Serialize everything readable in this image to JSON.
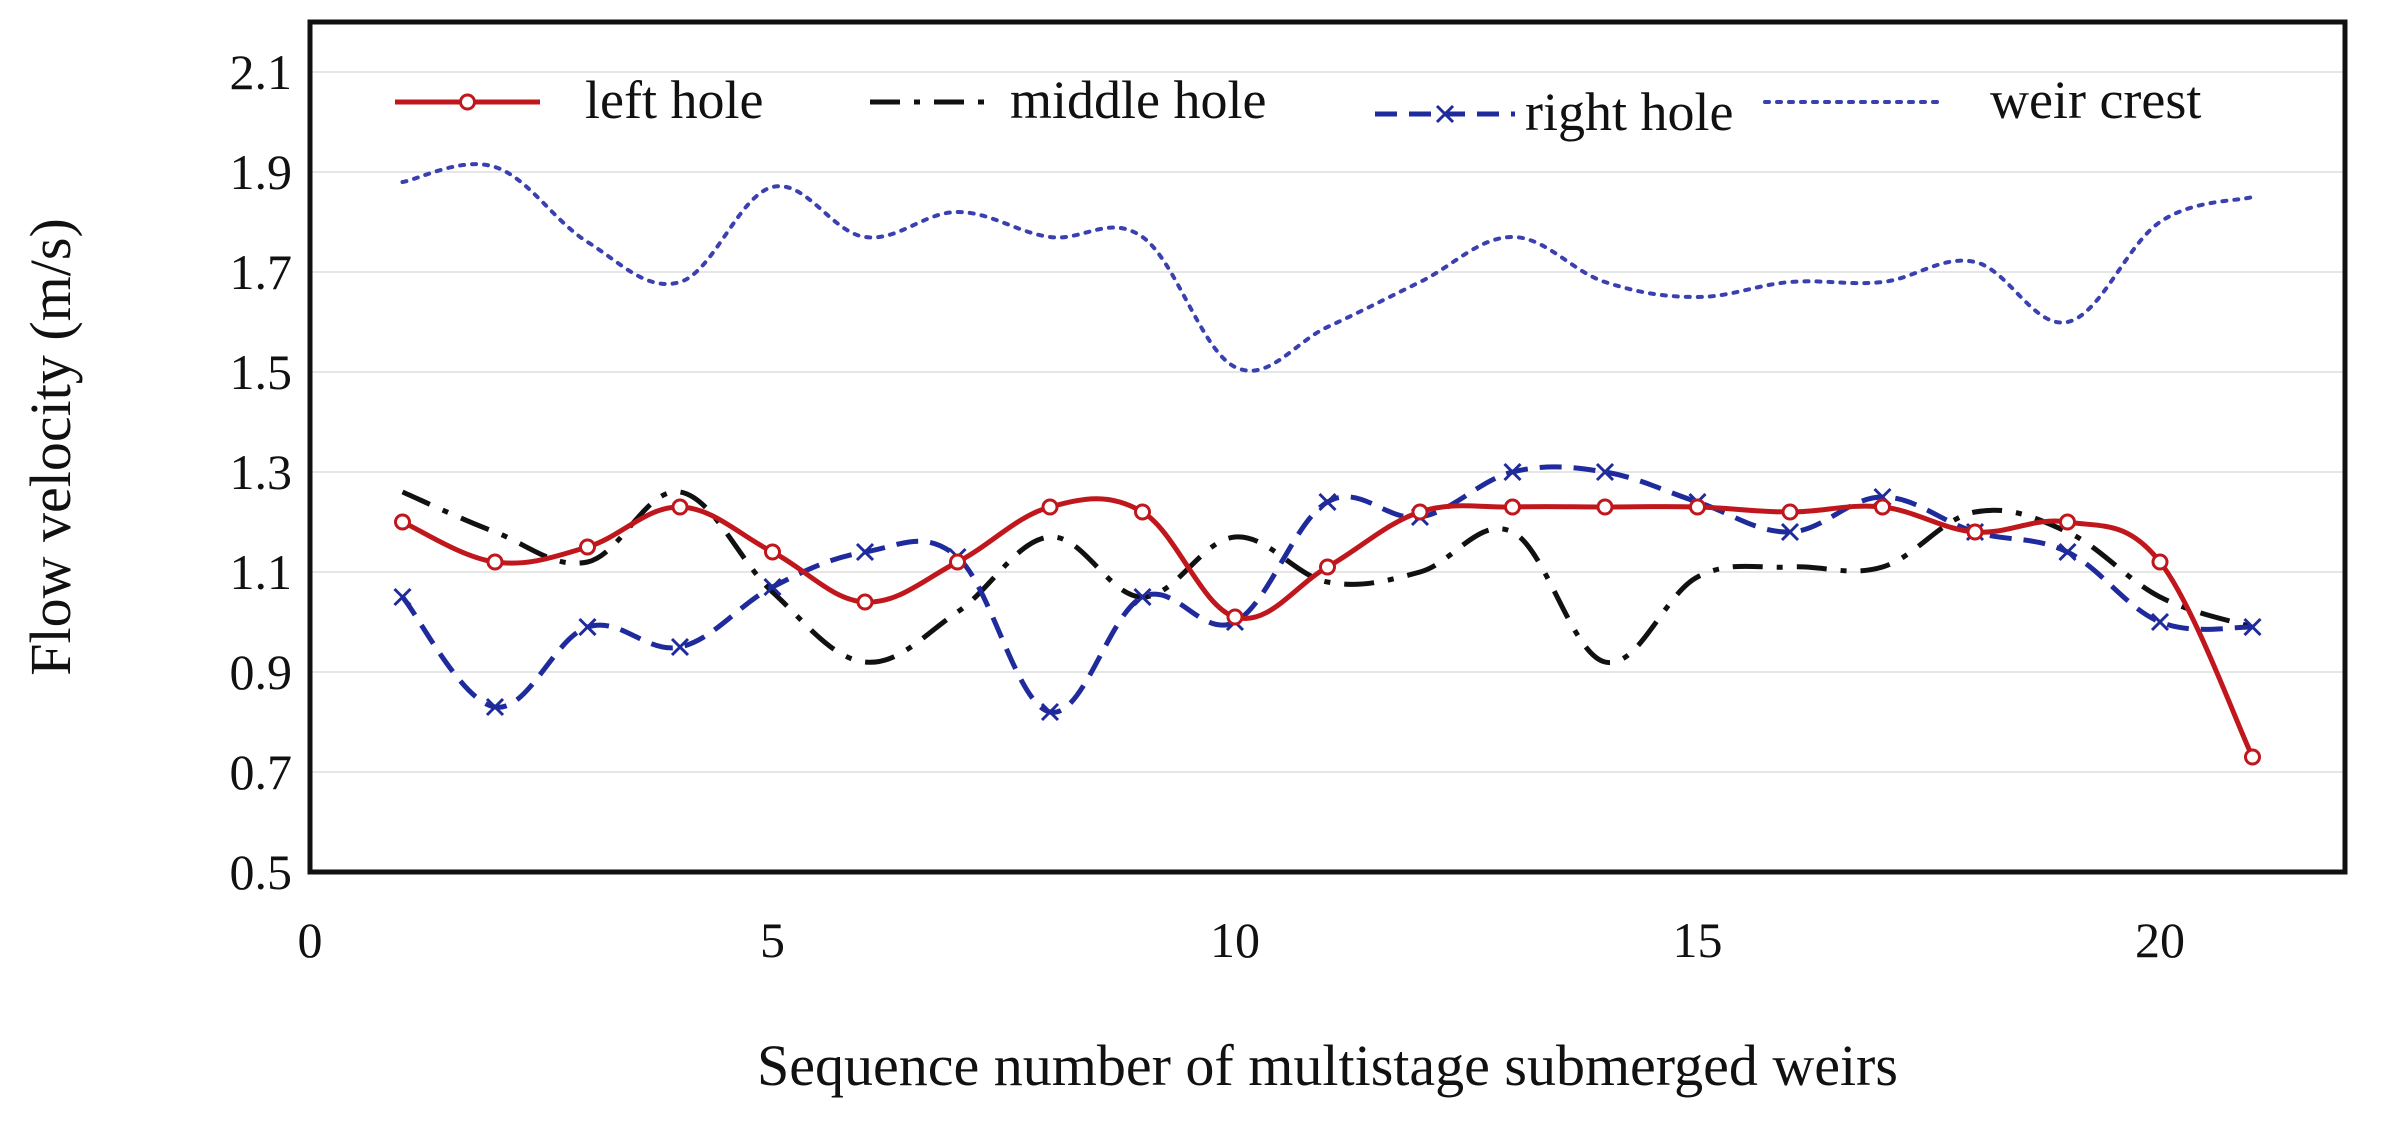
{
  "chart_data": {
    "type": "line",
    "xlabel": "Sequence number of multistage submerged weirs",
    "ylabel": "Flow velocity (m/s)",
    "xlim": [
      0,
      22
    ],
    "ylim": [
      0.5,
      2.2
    ],
    "xticks": [
      0,
      5,
      10,
      15,
      20
    ],
    "xtick_labels": [
      "0",
      "5",
      "10",
      "15",
      "20"
    ],
    "yticks": [
      0.5,
      0.7,
      0.9,
      1.1,
      1.3,
      1.5,
      1.7,
      1.9,
      2.1
    ],
    "ytick_labels": [
      "0.5",
      "0.7",
      "0.9",
      "1.1",
      "1.3",
      "1.5",
      "1.7",
      "1.9",
      "2.1"
    ],
    "grid": "horizontal",
    "legend_position": "top",
    "x": [
      1,
      2,
      3,
      4,
      5,
      6,
      7,
      8,
      9,
      10,
      11,
      12,
      13,
      14,
      15,
      16,
      17,
      18,
      19,
      20,
      21
    ],
    "series": [
      {
        "name": "left hole",
        "color": "#c0171d",
        "style": "solid",
        "marker": "circle",
        "values": [
          1.2,
          1.12,
          1.15,
          1.23,
          1.14,
          1.04,
          1.12,
          1.23,
          1.22,
          1.01,
          1.11,
          1.22,
          1.23,
          1.23,
          1.23,
          1.22,
          1.23,
          1.18,
          1.2,
          1.12,
          0.73
        ]
      },
      {
        "name": "middle hole",
        "color": "#111111",
        "style": "dashdot",
        "marker": "none",
        "values": [
          1.26,
          1.18,
          1.12,
          1.26,
          1.06,
          0.92,
          1.02,
          1.17,
          1.05,
          1.17,
          1.08,
          1.1,
          1.18,
          0.92,
          1.09,
          1.11,
          1.11,
          1.22,
          1.18,
          1.05,
          0.99
        ]
      },
      {
        "name": "right hole",
        "color": "#1f2a9c",
        "style": "dashed",
        "marker": "x",
        "values": [
          1.05,
          0.83,
          0.99,
          0.95,
          1.07,
          1.14,
          1.13,
          0.82,
          1.05,
          1.0,
          1.24,
          1.21,
          1.3,
          1.3,
          1.24,
          1.18,
          1.25,
          1.18,
          1.14,
          1.0,
          0.99
        ]
      },
      {
        "name": "weir crest",
        "color": "#3a40b0",
        "style": "dotted",
        "marker": "none",
        "values": [
          1.88,
          1.91,
          1.76,
          1.68,
          1.87,
          1.77,
          1.82,
          1.77,
          1.77,
          1.51,
          1.59,
          1.68,
          1.77,
          1.68,
          1.65,
          1.68,
          1.68,
          1.72,
          1.6,
          1.8,
          1.85
        ]
      }
    ]
  }
}
